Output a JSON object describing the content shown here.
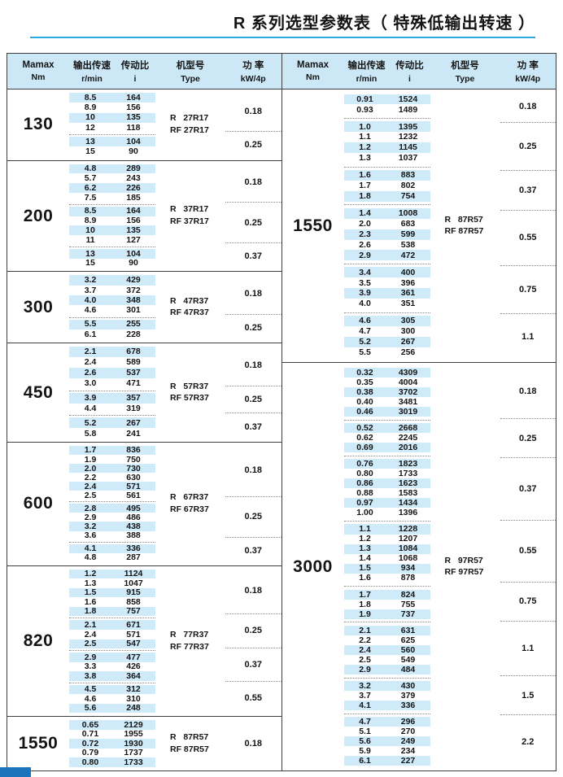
{
  "title": "R 系列选型参数表（ 特殊低输出转速 ）",
  "header": {
    "torque_label": "Mamax",
    "torque_unit": "Nm",
    "speed_label": "输出传速",
    "speed_unit": "r/min",
    "ratio_label": "传动比",
    "ratio_unit": "i",
    "model_label": "机型号",
    "model_unit": "Type",
    "power_label": "功 率",
    "power_unit": "kW/4p"
  },
  "colors": {
    "accent_blue": "#29abe2",
    "header_bg": "#cce8f7",
    "row_stripe_bg": "#cfeaf9",
    "corner_blue": "#1b75bc",
    "table_border": "#3f3f3f"
  },
  "tables": [
    {
      "side": "left",
      "sections": [
        {
          "mamax": "130",
          "type_lines": [
            "R   27R17",
            "RF 27R17"
          ],
          "groups": [
            {
              "power": "0.18",
              "rows": [
                [
                  "8.5",
                  "164"
                ],
                [
                  "8.9",
                  "156"
                ],
                [
                  "10",
                  "135"
                ],
                [
                  "12",
                  "118"
                ]
              ]
            },
            {
              "power": "0.25",
              "rows": [
                [
                  "13",
                  "104"
                ],
                [
                  "15",
                  "90"
                ]
              ]
            }
          ]
        },
        {
          "mamax": "200",
          "type_lines": [
            "R   37R17",
            "RF 37R17"
          ],
          "groups": [
            {
              "power": "0.18",
              "rows": [
                [
                  "4.8",
                  "289"
                ],
                [
                  "5.7",
                  "243"
                ],
                [
                  "6.2",
                  "226"
                ],
                [
                  "7.5",
                  "185"
                ]
              ]
            },
            {
              "power": "0.25",
              "rows": [
                [
                  "8.5",
                  "164"
                ],
                [
                  "8.9",
                  "156"
                ],
                [
                  "10",
                  "135"
                ],
                [
                  "11",
                  "127"
                ]
              ]
            },
            {
              "power": "0.37",
              "rows": [
                [
                  "13",
                  "104"
                ],
                [
                  "15",
                  "90"
                ]
              ]
            }
          ]
        },
        {
          "mamax": "300",
          "type_lines": [
            "R   47R37",
            "RF 47R37"
          ],
          "groups": [
            {
              "power": "0.18",
              "rows": [
                [
                  "3.2",
                  "429"
                ],
                [
                  "3.7",
                  "372"
                ],
                [
                  "4.0",
                  "348"
                ],
                [
                  "4.6",
                  "301"
                ]
              ]
            },
            {
              "power": "0.25",
              "rows": [
                [
                  "5.5",
                  "255"
                ],
                [
                  "6.1",
                  "228"
                ]
              ]
            }
          ]
        },
        {
          "mamax": "450",
          "type_lines": [
            "R   57R37",
            "RF 57R37"
          ],
          "groups": [
            {
              "power": "0.18",
              "rows": [
                [
                  "2.1",
                  "678"
                ],
                [
                  "2.4",
                  "589"
                ],
                [
                  "2.6",
                  "537"
                ],
                [
                  "3.0",
                  "471"
                ]
              ]
            },
            {
              "power": "0.25",
              "rows": [
                [
                  "3.9",
                  "357"
                ],
                [
                  "4.4",
                  "319"
                ]
              ]
            },
            {
              "power": "0.37",
              "rows": [
                [
                  "5.2",
                  "267"
                ],
                [
                  "5.8",
                  "241"
                ]
              ]
            }
          ]
        },
        {
          "mamax": "600",
          "type_lines": [
            "R   67R37",
            "RF 67R37"
          ],
          "groups": [
            {
              "power": "0.18",
              "rows": [
                [
                  "1.7",
                  "836"
                ],
                [
                  "1.9",
                  "750"
                ],
                [
                  "2.0",
                  "730"
                ],
                [
                  "2.2",
                  "630"
                ],
                [
                  "2.4",
                  "571"
                ],
                [
                  "2.5",
                  "561"
                ]
              ]
            },
            {
              "power": "0.25",
              "rows": [
                [
                  "2.8",
                  "495"
                ],
                [
                  "2.9",
                  "486"
                ],
                [
                  "3.2",
                  "438"
                ],
                [
                  "3.6",
                  "388"
                ]
              ]
            },
            {
              "power": "0.37",
              "rows": [
                [
                  "4.1",
                  "336"
                ],
                [
                  "4.8",
                  "287"
                ]
              ]
            }
          ]
        },
        {
          "mamax": "820",
          "type_lines": [
            "R   77R37",
            "RF 77R37"
          ],
          "groups": [
            {
              "power": "0.18",
              "rows": [
                [
                  "1.2",
                  "1124"
                ],
                [
                  "1.3",
                  "1047"
                ],
                [
                  "1.5",
                  "915"
                ],
                [
                  "1.6",
                  "858"
                ],
                [
                  "1.8",
                  "757"
                ]
              ]
            },
            {
              "power": "0.25",
              "rows": [
                [
                  "2.1",
                  "671"
                ],
                [
                  "2.4",
                  "571"
                ],
                [
                  "2.5",
                  "547"
                ]
              ]
            },
            {
              "power": "0.37",
              "rows": [
                [
                  "2.9",
                  "477"
                ],
                [
                  "3.3",
                  "426"
                ],
                [
                  "3.8",
                  "364"
                ]
              ]
            },
            {
              "power": "0.55",
              "rows": [
                [
                  "4.5",
                  "312"
                ],
                [
                  "4.6",
                  "310"
                ],
                [
                  "5.6",
                  "248"
                ]
              ]
            }
          ]
        },
        {
          "mamax": "1550",
          "type_lines": [
            "R   87R57",
            "RF 87R57"
          ],
          "groups": [
            {
              "power": "0.18",
              "rows": [
                [
                  "0.65",
                  "2129"
                ],
                [
                  "0.71",
                  "1955"
                ],
                [
                  "0.72",
                  "1930"
                ],
                [
                  "0.79",
                  "1737"
                ],
                [
                  "0.80",
                  "1733"
                ]
              ]
            }
          ]
        }
      ]
    },
    {
      "side": "right",
      "sections": [
        {
          "mamax": "1550",
          "type_lines": [
            "R   87R57",
            "RF 87R57"
          ],
          "groups": [
            {
              "power": "0.18",
              "rows": [
                [
                  "0.91",
                  "1524"
                ],
                [
                  "0.93",
                  "1489"
                ]
              ]
            },
            {
              "power": "0.25",
              "rows": [
                [
                  "1.0",
                  "1395"
                ],
                [
                  "1.1",
                  "1232"
                ],
                [
                  "1.2",
                  "1145"
                ],
                [
                  "1.3",
                  "1037"
                ]
              ]
            },
            {
              "power": "0.37",
              "rows": [
                [
                  "1.6",
                  "883"
                ],
                [
                  "1.7",
                  "802"
                ],
                [
                  "1.8",
                  "754"
                ]
              ]
            },
            {
              "power": "0.55",
              "rows": [
                [
                  "1.4",
                  "1008"
                ],
                [
                  "2.0",
                  "683"
                ],
                [
                  "2.3",
                  "599"
                ],
                [
                  "2.6",
                  "538"
                ],
                [
                  "2.9",
                  "472"
                ]
              ]
            },
            {
              "power": "0.75",
              "rows": [
                [
                  "3.4",
                  "400"
                ],
                [
                  "3.5",
                  "396"
                ],
                [
                  "3.9",
                  "361"
                ],
                [
                  "4.0",
                  "351"
                ]
              ]
            },
            {
              "power": "1.1",
              "rows": [
                [
                  "4.6",
                  "305"
                ],
                [
                  "4.7",
                  "300"
                ],
                [
                  "5.2",
                  "267"
                ],
                [
                  "5.5",
                  "256"
                ]
              ]
            }
          ]
        },
        {
          "mamax": "3000",
          "type_lines": [
            "R   97R57",
            "RF 97R57"
          ],
          "groups": [
            {
              "power": "0.18",
              "rows": [
                [
                  "0.32",
                  "4309"
                ],
                [
                  "0.35",
                  "4004"
                ],
                [
                  "0.38",
                  "3702"
                ],
                [
                  "0.40",
                  "3481"
                ],
                [
                  "0.46",
                  "3019"
                ]
              ]
            },
            {
              "power": "0.25",
              "rows": [
                [
                  "0.52",
                  "2668"
                ],
                [
                  "0.62",
                  "2245"
                ],
                [
                  "0.69",
                  "2016"
                ]
              ]
            },
            {
              "power": "0.37",
              "rows": [
                [
                  "0.76",
                  "1823"
                ],
                [
                  "0.80",
                  "1733"
                ],
                [
                  "0.86",
                  "1623"
                ],
                [
                  "0.88",
                  "1583"
                ],
                [
                  "0.97",
                  "1434"
                ],
                [
                  "1.00",
                  "1396"
                ]
              ]
            },
            {
              "power": "0.55",
              "rows": [
                [
                  "1.1",
                  "1228"
                ],
                [
                  "1.2",
                  "1207"
                ],
                [
                  "1.3",
                  "1084"
                ],
                [
                  "1.4",
                  "1068"
                ],
                [
                  "1.5",
                  "934"
                ],
                [
                  "1.6",
                  "878"
                ]
              ]
            },
            {
              "power": "0.75",
              "rows": [
                [
                  "1.7",
                  "824"
                ],
                [
                  "1.8",
                  "755"
                ],
                [
                  "1.9",
                  "737"
                ]
              ]
            },
            {
              "power": "1.1",
              "rows": [
                [
                  "2.1",
                  "631"
                ],
                [
                  "2.2",
                  "625"
                ],
                [
                  "2.4",
                  "560"
                ],
                [
                  "2.5",
                  "549"
                ],
                [
                  "2.9",
                  "484"
                ]
              ]
            },
            {
              "power": "1.5",
              "rows": [
                [
                  "3.2",
                  "430"
                ],
                [
                  "3.7",
                  "379"
                ],
                [
                  "4.1",
                  "336"
                ]
              ]
            },
            {
              "power": "2.2",
              "rows": [
                [
                  "4.7",
                  "296"
                ],
                [
                  "5.1",
                  "270"
                ],
                [
                  "5.6",
                  "249"
                ],
                [
                  "5.9",
                  "234"
                ],
                [
                  "6.1",
                  "227"
                ]
              ]
            }
          ]
        }
      ]
    }
  ]
}
